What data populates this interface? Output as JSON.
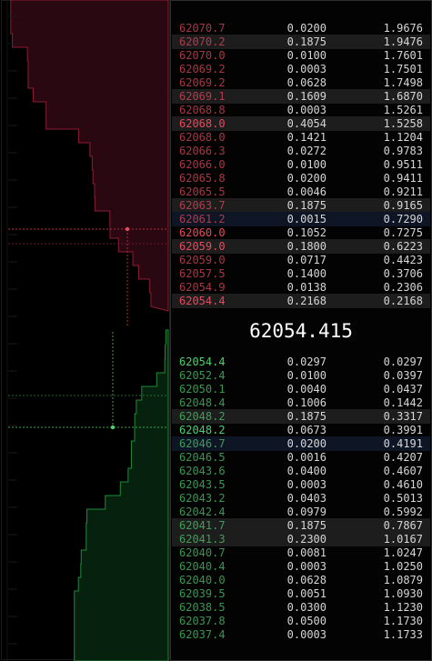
{
  "mid_price": "62054.415",
  "asks": [
    {
      "price": "62070.7",
      "qty": "0.0200",
      "total": "1.9676",
      "hl": false,
      "sel": false,
      "dim": true
    },
    {
      "price": "62070.2",
      "qty": "0.1875",
      "total": "1.9476",
      "hl": true,
      "sel": false,
      "dim": true
    },
    {
      "price": "62070.0",
      "qty": "0.0100",
      "total": "1.7601",
      "hl": false,
      "sel": false,
      "dim": true
    },
    {
      "price": "62069.2",
      "qty": "0.0003",
      "total": "1.7501",
      "hl": false,
      "sel": false,
      "dim": true
    },
    {
      "price": "62069.2",
      "qty": "0.0628",
      "total": "1.7498",
      "hl": false,
      "sel": false,
      "dim": true
    },
    {
      "price": "62069.1",
      "qty": "0.1609",
      "total": "1.6870",
      "hl": true,
      "sel": false,
      "dim": true
    },
    {
      "price": "62068.8",
      "qty": "0.0003",
      "total": "1.5261",
      "hl": false,
      "sel": false,
      "dim": true
    },
    {
      "price": "62068.0",
      "qty": "0.4054",
      "total": "1.5258",
      "hl": true,
      "sel": false,
      "dim": false
    },
    {
      "price": "62068.0",
      "qty": "0.1421",
      "total": "1.1204",
      "hl": false,
      "sel": false,
      "dim": true
    },
    {
      "price": "62066.3",
      "qty": "0.0272",
      "total": "0.9783",
      "hl": false,
      "sel": false,
      "dim": true
    },
    {
      "price": "62066.0",
      "qty": "0.0100",
      "total": "0.9511",
      "hl": false,
      "sel": false,
      "dim": true
    },
    {
      "price": "62065.8",
      "qty": "0.0200",
      "total": "0.9411",
      "hl": false,
      "sel": false,
      "dim": true
    },
    {
      "price": "62065.5",
      "qty": "0.0046",
      "total": "0.9211",
      "hl": false,
      "sel": false,
      "dim": true
    },
    {
      "price": "62063.7",
      "qty": "0.1875",
      "total": "0.9165",
      "hl": true,
      "sel": false,
      "dim": true
    },
    {
      "price": "62061.2",
      "qty": "0.0015",
      "total": "0.7290",
      "hl": false,
      "sel": true,
      "dim": true
    },
    {
      "price": "62060.0",
      "qty": "0.1052",
      "total": "0.7275",
      "hl": false,
      "sel": false,
      "dim": false
    },
    {
      "price": "62059.0",
      "qty": "0.1800",
      "total": "0.6223",
      "hl": true,
      "sel": false,
      "dim": false
    },
    {
      "price": "62059.0",
      "qty": "0.0717",
      "total": "0.4423",
      "hl": false,
      "sel": false,
      "dim": true
    },
    {
      "price": "62057.5",
      "qty": "0.1400",
      "total": "0.3706",
      "hl": false,
      "sel": false,
      "dim": true
    },
    {
      "price": "62054.9",
      "qty": "0.0138",
      "total": "0.2306",
      "hl": false,
      "sel": false,
      "dim": true
    },
    {
      "price": "62054.4",
      "qty": "0.2168",
      "total": "0.2168",
      "hl": true,
      "sel": false,
      "dim": false
    }
  ],
  "bids": [
    {
      "price": "62054.4",
      "qty": "0.0297",
      "total": "0.0297",
      "hl": false,
      "sel": false,
      "dim": false
    },
    {
      "price": "62052.4",
      "qty": "0.0100",
      "total": "0.0397",
      "hl": false,
      "sel": false,
      "dim": true
    },
    {
      "price": "62050.1",
      "qty": "0.0040",
      "total": "0.0437",
      "hl": false,
      "sel": false,
      "dim": true
    },
    {
      "price": "62048.4",
      "qty": "0.1006",
      "total": "0.1442",
      "hl": false,
      "sel": false,
      "dim": true
    },
    {
      "price": "62048.2",
      "qty": "0.1875",
      "total": "0.3317",
      "hl": true,
      "sel": false,
      "dim": true
    },
    {
      "price": "62048.2",
      "qty": "0.0673",
      "total": "0.3991",
      "hl": false,
      "sel": false,
      "dim": false
    },
    {
      "price": "62046.7",
      "qty": "0.0200",
      "total": "0.4191",
      "hl": false,
      "sel": true,
      "dim": true
    },
    {
      "price": "62046.5",
      "qty": "0.0016",
      "total": "0.4207",
      "hl": false,
      "sel": false,
      "dim": true
    },
    {
      "price": "62043.6",
      "qty": "0.0400",
      "total": "0.4607",
      "hl": false,
      "sel": false,
      "dim": true
    },
    {
      "price": "62043.5",
      "qty": "0.0003",
      "total": "0.4610",
      "hl": false,
      "sel": false,
      "dim": true
    },
    {
      "price": "62043.2",
      "qty": "0.0403",
      "total": "0.5013",
      "hl": false,
      "sel": false,
      "dim": true
    },
    {
      "price": "62042.4",
      "qty": "0.0979",
      "total": "0.5992",
      "hl": false,
      "sel": false,
      "dim": true
    },
    {
      "price": "62041.7",
      "qty": "0.1875",
      "total": "0.7867",
      "hl": true,
      "sel": false,
      "dim": true
    },
    {
      "price": "62041.3",
      "qty": "0.2300",
      "total": "1.0167",
      "hl": true,
      "sel": false,
      "dim": true
    },
    {
      "price": "62040.7",
      "qty": "0.0081",
      "total": "1.0247",
      "hl": false,
      "sel": false,
      "dim": true
    },
    {
      "price": "62040.4",
      "qty": "0.0003",
      "total": "1.0250",
      "hl": false,
      "sel": false,
      "dim": true
    },
    {
      "price": "62040.0",
      "qty": "0.0628",
      "total": "1.0879",
      "hl": false,
      "sel": false,
      "dim": true
    },
    {
      "price": "62039.5",
      "qty": "0.0051",
      "total": "1.0930",
      "hl": false,
      "sel": false,
      "dim": true
    },
    {
      "price": "62038.5",
      "qty": "0.0300",
      "total": "1.1230",
      "hl": false,
      "sel": false,
      "dim": true
    },
    {
      "price": "62037.8",
      "qty": "0.0500",
      "total": "1.1730",
      "hl": false,
      "sel": false,
      "dim": true
    },
    {
      "price": "62037.4",
      "qty": "0.0003",
      "total": "1.1733",
      "hl": false,
      "sel": false,
      "dim": true
    }
  ],
  "chart_data": {
    "type": "area",
    "ask_cumulative": [
      0.2168,
      0.2306,
      0.3706,
      0.4423,
      0.6223,
      0.7275,
      0.729,
      0.9165,
      0.9211,
      0.9411,
      0.9511,
      0.9783,
      1.1204,
      1.5258,
      1.5261,
      1.687,
      1.7498,
      1.7501,
      1.7601,
      1.9476,
      1.9676
    ],
    "bid_cumulative": [
      0.0297,
      0.0397,
      0.0437,
      0.1442,
      0.3317,
      0.3991,
      0.4191,
      0.4207,
      0.4607,
      0.461,
      0.5013,
      0.5992,
      0.7867,
      1.0167,
      1.0247,
      1.025,
      1.0879,
      1.093,
      1.123,
      1.173,
      1.1733
    ],
    "colors": {
      "ask_fill": "#2a0812",
      "ask_line": "#8e1c34",
      "bid_fill": "#06220e",
      "bid_line": "#1f8a3a"
    }
  }
}
